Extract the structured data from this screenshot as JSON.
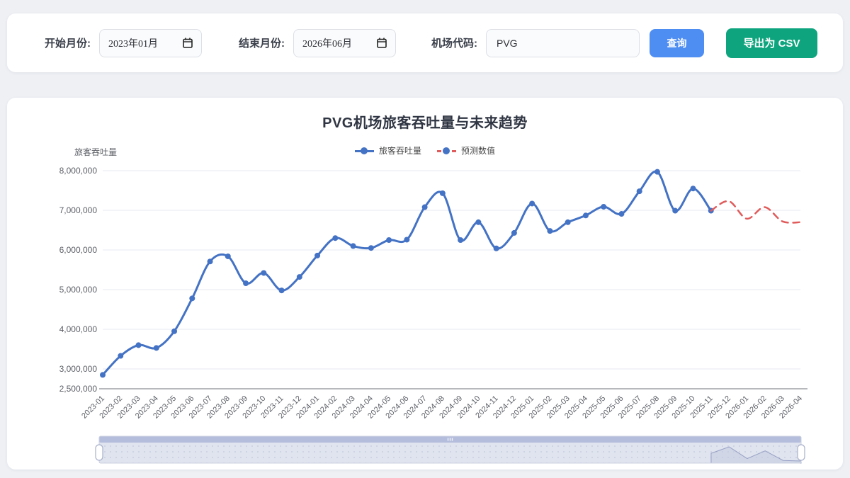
{
  "toolbar": {
    "start_label": "开始月份:",
    "start_value": "2023年01月",
    "end_label": "结束月份:",
    "end_value": "2026年06月",
    "airport_label": "机场代码:",
    "airport_value": "PVG",
    "query_label": "查询",
    "export_label": "导出为 CSV"
  },
  "colors": {
    "actual_line": "#4472c4",
    "forecast_line": "#e05b5b",
    "query_button": "#4e8df2",
    "export_button": "#0ea57e",
    "grid_line": "#e7eaf2",
    "axis_line": "#6e7079",
    "axis_text": "#5c5f66",
    "slider_strip": "#b4bddc",
    "slider_fill": "#e0e4ef",
    "slider_shadow_stroke": "#96a0c4",
    "slider_shadow_fill": "#c3cadf"
  },
  "chart_data": {
    "type": "line",
    "title": "PVG机场旅客吞吐量与未来趋势",
    "ylabel": "旅客吞吐量",
    "xlabel": "",
    "grid": true,
    "legend_position": "top",
    "legend": [
      "旅客吞吐量",
      "预测数值"
    ],
    "ylim": [
      2500000,
      8000000
    ],
    "yticks": [
      2500000,
      3000000,
      4000000,
      5000000,
      6000000,
      7000000,
      8000000
    ],
    "categories": [
      "2023-01",
      "2023-02",
      "2023-03",
      "2023-04",
      "2023-05",
      "2023-06",
      "2023-07",
      "2023-08",
      "2023-09",
      "2023-10",
      "2023-11",
      "2023-12",
      "2024-01",
      "2024-02",
      "2024-03",
      "2024-04",
      "2024-05",
      "2024-06",
      "2024-07",
      "2024-08",
      "2024-09",
      "2024-10",
      "2024-11",
      "2024-12",
      "2025-01",
      "2025-02",
      "2025-03",
      "2025-04",
      "2025-05",
      "2025-06",
      "2025-07",
      "2025-08",
      "2025-09",
      "2025-10",
      "2025-11",
      "2025-12",
      "2026-01",
      "2026-02",
      "2026-03",
      "2026-04"
    ],
    "series": [
      {
        "name": "旅客吞吐量",
        "style": "solid",
        "color": "#4472c4",
        "start_index": 0,
        "values": [
          2850000,
          3330000,
          3600000,
          3530000,
          3950000,
          4780000,
          5710000,
          5840000,
          5160000,
          5420000,
          4980000,
          5320000,
          5860000,
          6300000,
          6100000,
          6050000,
          6250000,
          6260000,
          7080000,
          7430000,
          6250000,
          6700000,
          6040000,
          6430000,
          7170000,
          6480000,
          6700000,
          6870000,
          7090000,
          6910000,
          7480000,
          7970000,
          6990000,
          7550000,
          6990000
        ]
      },
      {
        "name": "预测数值",
        "style": "dashed",
        "color": "#e05b5b",
        "start_index": 34,
        "values": [
          6990000,
          7230000,
          6790000,
          7080000,
          6720000,
          6700000
        ]
      }
    ]
  }
}
